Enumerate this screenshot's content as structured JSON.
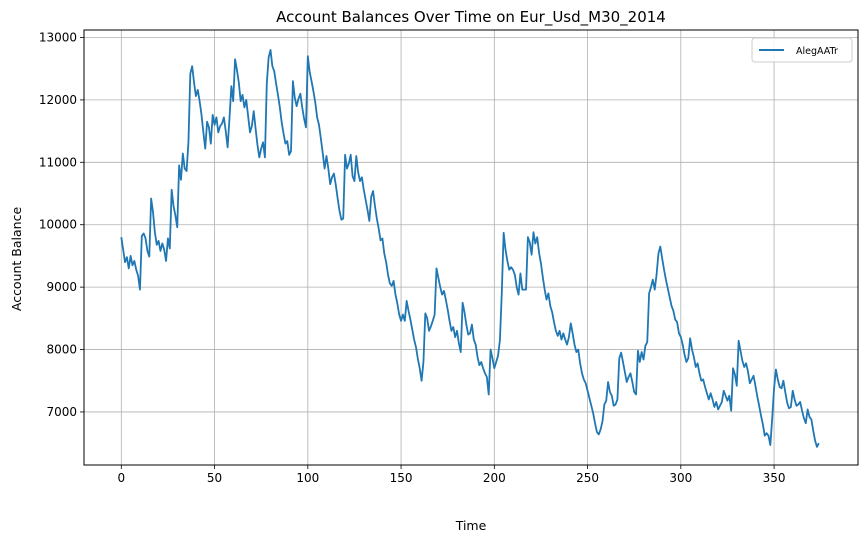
{
  "chart_data": {
    "type": "line",
    "title": "Account Balances Over Time on Eur_Usd_M30_2014",
    "xlabel": "Time",
    "ylabel": "Account Balance",
    "xlim": [
      -20,
      395
    ],
    "ylim": [
      6150,
      13120
    ],
    "xticks": [
      0,
      50,
      100,
      150,
      200,
      250,
      300,
      350
    ],
    "yticks": [
      7000,
      8000,
      9000,
      10000,
      11000,
      12000,
      13000
    ],
    "grid": true,
    "legend_position": "top-right",
    "series": [
      {
        "name": "AlegAATr",
        "color": "#1f77b4",
        "x_start": 0,
        "x_step": 1,
        "values": [
          9800,
          9600,
          9400,
          9480,
          9300,
          9500,
          9350,
          9420,
          9280,
          9180,
          8960,
          9820,
          9860,
          9780,
          9580,
          9490,
          10420,
          10200,
          9880,
          9680,
          9740,
          9580,
          9700,
          9600,
          9420,
          9780,
          9620,
          10560,
          10300,
          10150,
          9960,
          10950,
          10720,
          11140,
          10900,
          10860,
          11320,
          12420,
          12540,
          12280,
          12060,
          12160,
          11980,
          11760,
          11480,
          11220,
          11650,
          11560,
          11300,
          11760,
          11600,
          11720,
          11480,
          11580,
          11620,
          11720,
          11500,
          11240,
          11700,
          12220,
          11980,
          12650,
          12480,
          12280,
          11980,
          12080,
          11880,
          12000,
          11740,
          11480,
          11580,
          11820,
          11540,
          11280,
          11080,
          11220,
          11320,
          11080,
          12260,
          12680,
          12800,
          12540,
          12460,
          12260,
          12080,
          11880,
          11640,
          11460,
          11300,
          11340,
          11120,
          11180,
          12300,
          12040,
          11900,
          12020,
          12100,
          11880,
          11700,
          11560,
          12700,
          12450,
          12300,
          12140,
          11960,
          11720,
          11600,
          11380,
          11150,
          10900,
          11100,
          10900,
          10650,
          10760,
          10820,
          10640,
          10420,
          10220,
          10080,
          10100,
          11120,
          10900,
          10980,
          11120,
          10780,
          10700,
          11100,
          10840,
          10700,
          10760,
          10560,
          10400,
          10240,
          10060,
          10450,
          10540,
          10300,
          10100,
          9940,
          9750,
          9780,
          9540,
          9400,
          9200,
          9060,
          9020,
          9100,
          8880,
          8740,
          8560,
          8460,
          8560,
          8460,
          8780,
          8620,
          8480,
          8320,
          8160,
          8040,
          7850,
          7700,
          7500,
          7800,
          8580,
          8500,
          8300,
          8370,
          8460,
          8560,
          9300,
          9150,
          9000,
          8880,
          8940,
          8800,
          8640,
          8460,
          8300,
          8360,
          8200,
          8300,
          8100,
          7960,
          8750,
          8600,
          8400,
          8240,
          8260,
          8400,
          8160,
          8080,
          7880,
          7750,
          7800,
          7700,
          7620,
          7560,
          7280,
          8000,
          7860,
          7700,
          7800,
          7900,
          8150,
          8900,
          9870,
          9600,
          9420,
          9280,
          9320,
          9280,
          9200,
          9000,
          8880,
          9220,
          8960,
          8960,
          8960,
          9800,
          9720,
          9520,
          9880,
          9700,
          9800,
          9550,
          9380,
          9160,
          8960,
          8800,
          8900,
          8700,
          8600,
          8440,
          8300,
          8220,
          8300,
          8160,
          8260,
          8160,
          8080,
          8200,
          8420,
          8260,
          8080,
          7960,
          8000,
          7780,
          7620,
          7520,
          7460,
          7340,
          7220,
          7100,
          6980,
          6820,
          6680,
          6640,
          6720,
          6850,
          7120,
          7180,
          7480,
          7320,
          7260,
          7100,
          7120,
          7200,
          7860,
          7950,
          7800,
          7640,
          7480,
          7560,
          7620,
          7480,
          7320,
          7280,
          7980,
          7800,
          7960,
          7840,
          8060,
          8120,
          8900,
          9000,
          9120,
          8960,
          9200,
          9540,
          9650,
          9460,
          9280,
          9120,
          8980,
          8840,
          8700,
          8620,
          8480,
          8440,
          8260,
          8200,
          8080,
          7920,
          7800,
          7860,
          8180,
          8000,
          7880,
          7720,
          7780,
          7620,
          7500,
          7520,
          7400,
          7300,
          7200,
          7300,
          7200,
          7080,
          7160,
          7040,
          7100,
          7160,
          7340,
          7260,
          7180,
          7260,
          7020,
          7700,
          7600,
          7420,
          8140,
          7980,
          7820,
          7720,
          7780,
          7650,
          7460,
          7520,
          7580,
          7420,
          7250,
          7100,
          6940,
          6800,
          6620,
          6660,
          6620,
          6470,
          6900,
          7380,
          7680,
          7520,
          7400,
          7380,
          7500,
          7320,
          7150,
          7060,
          7080,
          7340,
          7200,
          7100,
          7120,
          7160,
          7020,
          6900,
          6820,
          7040,
          6920,
          6880,
          6700,
          6540,
          6440,
          6500
        ]
      }
    ]
  }
}
